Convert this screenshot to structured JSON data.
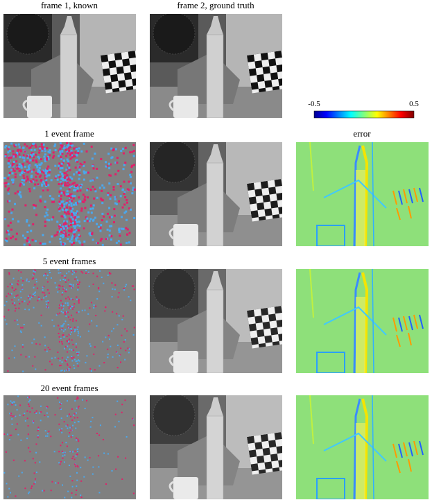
{
  "figure": {
    "column_titles": [
      "frame 1, known",
      "frame 2, ground truth"
    ],
    "row_titles": [
      "1 event frame",
      "5 event frames",
      "20 event frames"
    ],
    "error_title": "error",
    "colorbar": {
      "labels": [
        "-0.5",
        "0.5"
      ]
    }
  }
}
